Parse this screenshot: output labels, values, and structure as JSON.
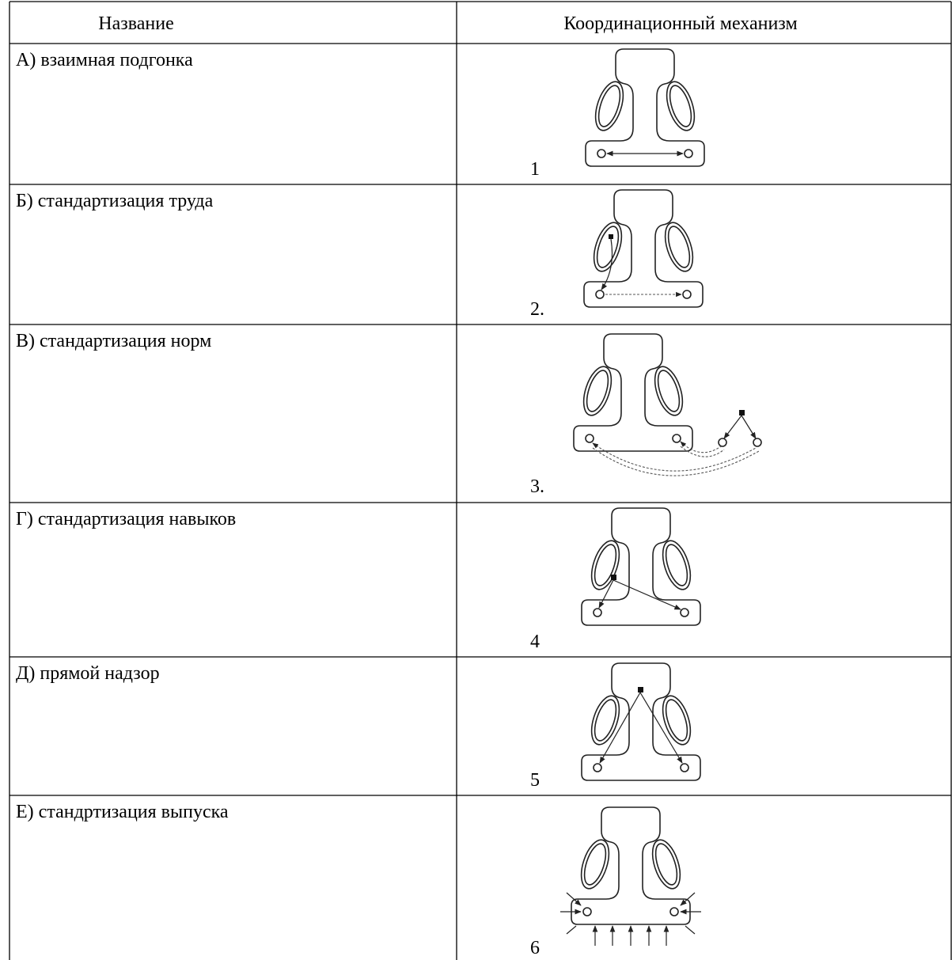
{
  "table": {
    "headers": [
      "Название",
      "Координационный механизм"
    ],
    "rows": [
      [
        "А) взаимная подгонка",
        "1"
      ],
      [
        "Б) стандартизация труда",
        "2."
      ],
      [
        "В) стандартизация норм",
        "3."
      ],
      [
        "Г) стандартизация навыков",
        "4"
      ],
      [
        "Д) прямой надзор",
        "5"
      ],
      [
        "Е) стандртизация выпуска",
        "6"
      ]
    ]
  }
}
